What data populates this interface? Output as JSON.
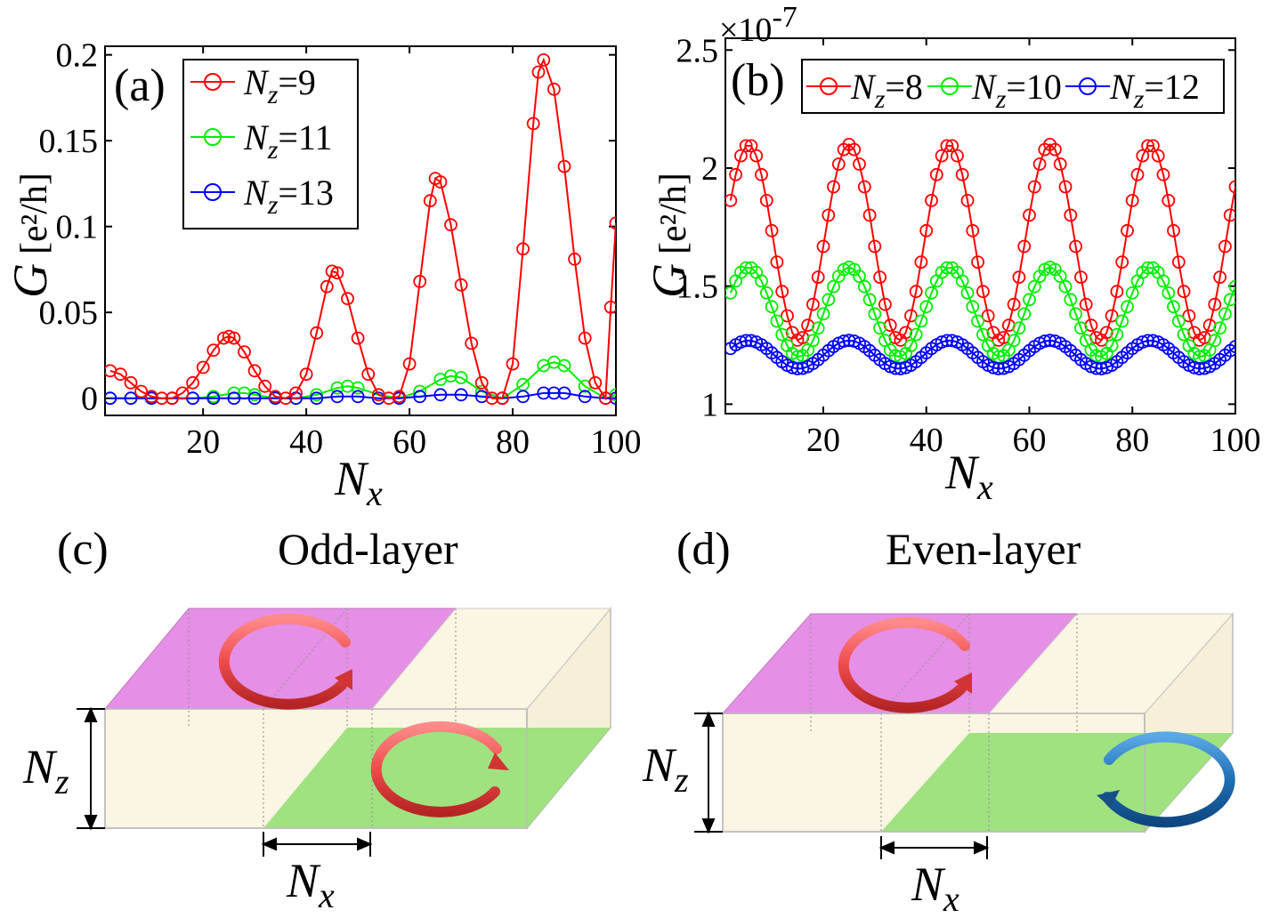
{
  "panel_a": {
    "label": "(a)",
    "ylabel_var": "G",
    "ylabel_unit": "[e²/h]",
    "xlabel_var": "N",
    "xlabel_sub": "x",
    "legend": [
      {
        "var": "N",
        "sub": "z",
        "val": "=9",
        "color": "#ff0000"
      },
      {
        "var": "N",
        "sub": "z",
        "val": "=11",
        "color": "#00ee00"
      },
      {
        "var": "N",
        "sub": "z",
        "val": "=13",
        "color": "#0000ff"
      }
    ]
  },
  "panel_b": {
    "label": "(b)",
    "ylabel_var": "G",
    "ylabel_unit": "[e²/h]",
    "xlabel_var": "N",
    "xlabel_sub": "x",
    "multiplier": "×10",
    "multiplier_exp": "-7",
    "legend": [
      {
        "var": "N",
        "sub": "z",
        "val": "=8",
        "color": "#ff0000"
      },
      {
        "var": "N",
        "sub": "z",
        "val": "=10",
        "color": "#00ee00"
      },
      {
        "var": "N",
        "sub": "z",
        "val": "=12",
        "color": "#0000ff"
      }
    ]
  },
  "panel_c": {
    "label": "(c)",
    "title": "Odd-layer",
    "nz_var": "N",
    "nz_sub": "z",
    "nx_var": "N",
    "nx_sub": "x"
  },
  "panel_d": {
    "label": "(d)",
    "title": "Even-layer",
    "nz_var": "N",
    "nz_sub": "z",
    "nx_var": "N",
    "nx_sub": "x"
  },
  "colors": {
    "red": "#ff0000",
    "green": "#00ee00",
    "blue": "#0000ff",
    "slab": "#fbf5e3",
    "pink": "#e68fe6",
    "greenface": "#9be07a",
    "arrow_red": "#f05a5a",
    "arrow_blue": "#1f6fb5"
  },
  "chart_data": [
    {
      "type": "line",
      "title": "",
      "xlabel": "N_x",
      "ylabel": "G [e^2/h]",
      "xlim": [
        1,
        100
      ],
      "ylim": [
        -0.01,
        0.205
      ],
      "xticks": [
        20,
        40,
        60,
        80,
        100
      ],
      "xtick_labels": [
        "20",
        "40",
        "60",
        "80",
        "100"
      ],
      "yticks": [
        0,
        0.05,
        0.1,
        0.15,
        0.2
      ],
      "ytick_labels": [
        "0",
        "0.05",
        "0.1",
        "0.15",
        "0.2"
      ],
      "series": [
        {
          "name": "N_z=9",
          "color": "#ff0000",
          "marker": "circle",
          "x": [
            2,
            4,
            6,
            8,
            10,
            12,
            14,
            16,
            18,
            20,
            22,
            24,
            25,
            26,
            28,
            30,
            32,
            34,
            36,
            38,
            40,
            42,
            44,
            45,
            46,
            48,
            50,
            52,
            54,
            56,
            58,
            60,
            62,
            64,
            65,
            66,
            68,
            70,
            72,
            74,
            76,
            78,
            80,
            82,
            84,
            85,
            86,
            88,
            90,
            92,
            94,
            96,
            98,
            99,
            100
          ],
          "y": [
            0.016,
            0.014,
            0.009,
            0.004,
            0.001,
            0.0,
            0.0,
            0.003,
            0.009,
            0.018,
            0.028,
            0.035,
            0.036,
            0.035,
            0.027,
            0.016,
            0.007,
            0.001,
            0.0,
            0.003,
            0.014,
            0.038,
            0.065,
            0.074,
            0.073,
            0.058,
            0.035,
            0.014,
            0.002,
            0.0,
            0.001,
            0.02,
            0.068,
            0.115,
            0.128,
            0.126,
            0.101,
            0.066,
            0.032,
            0.009,
            0.0,
            0.0,
            0.02,
            0.087,
            0.16,
            0.19,
            0.197,
            0.18,
            0.135,
            0.081,
            0.035,
            0.009,
            0.0,
            0.053,
            0.102
          ]
        },
        {
          "name": "N_z=11",
          "color": "#00ee00",
          "marker": "circle",
          "x": [
            2,
            6,
            10,
            14,
            18,
            22,
            26,
            28,
            30,
            34,
            38,
            42,
            46,
            48,
            50,
            54,
            58,
            62,
            66,
            68,
            70,
            74,
            78,
            82,
            86,
            88,
            90,
            94,
            98,
            100
          ],
          "y": [
            0.0,
            0.0,
            0.0,
            0.0,
            0.0,
            0.001,
            0.003,
            0.003,
            0.002,
            0.0,
            0.0,
            0.002,
            0.006,
            0.007,
            0.006,
            0.002,
            0.0,
            0.004,
            0.011,
            0.013,
            0.012,
            0.004,
            0.0,
            0.008,
            0.019,
            0.021,
            0.019,
            0.007,
            0.0,
            0.002
          ]
        },
        {
          "name": "N_z=13",
          "color": "#0000ff",
          "marker": "circle",
          "x": [
            2,
            6,
            10,
            14,
            18,
            22,
            26,
            30,
            34,
            38,
            42,
            46,
            50,
            54,
            58,
            62,
            66,
            70,
            74,
            78,
            82,
            86,
            88,
            90,
            94,
            98,
            100
          ],
          "y": [
            0.0,
            0.0,
            0.0,
            0.0,
            0.0,
            0.0,
            0.0,
            0.0,
            0.0,
            0.0,
            0.0,
            0.001,
            0.001,
            0.0,
            0.0,
            0.001,
            0.002,
            0.002,
            0.001,
            0.0,
            0.001,
            0.003,
            0.003,
            0.003,
            0.001,
            0.0,
            0.0
          ]
        }
      ]
    },
    {
      "type": "line",
      "title": "",
      "xlabel": "N_x",
      "ylabel": "G [e^2/h]",
      "multiplier": "1e-7",
      "xlim": [
        1,
        100
      ],
      "ylim": [
        0.96,
        2.55
      ],
      "xticks": [
        20,
        40,
        60,
        80,
        100
      ],
      "xtick_labels": [
        "20",
        "40",
        "60",
        "80",
        "100"
      ],
      "yticks": [
        1,
        1.5,
        2,
        2.5
      ],
      "ytick_labels": [
        "1",
        "1.5",
        "2",
        "2.5"
      ],
      "series": [
        {
          "name": "N_z=8",
          "color": "#ff0000",
          "marker": "circle",
          "period": 19.5,
          "peak": 2.1,
          "trough": 1.27,
          "first_peak_x": 5.5
        },
        {
          "name": "N_z=10",
          "color": "#00ee00",
          "marker": "circle",
          "period": 19.5,
          "peak": 1.58,
          "trough": 1.2,
          "first_peak_x": 5.5
        },
        {
          "name": "N_z=12",
          "color": "#0000ff",
          "marker": "circle",
          "period": 19.5,
          "peak": 1.27,
          "trough": 1.15,
          "first_peak_x": 5.5
        }
      ]
    }
  ]
}
